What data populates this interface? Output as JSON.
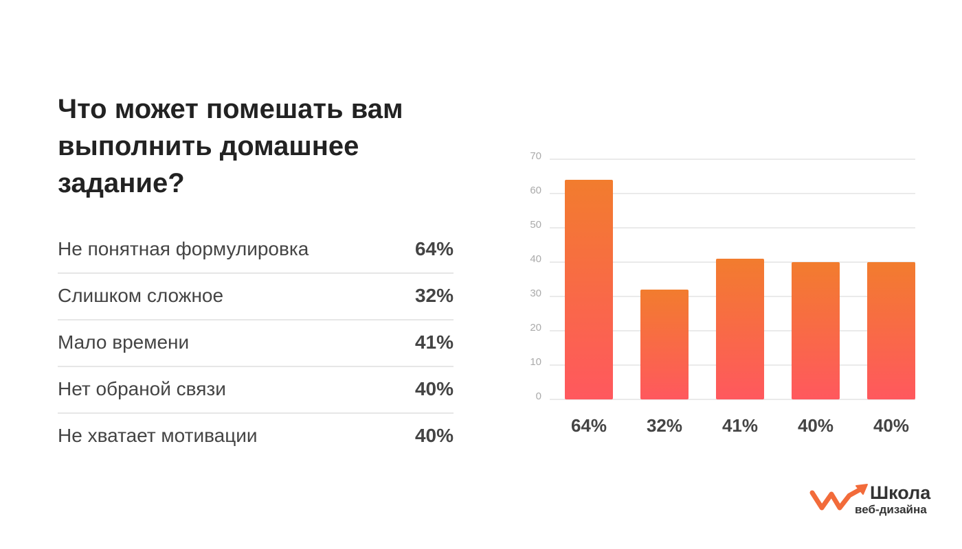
{
  "title": "Что может помешать вам выполнить домашнее задание?",
  "table": {
    "rows": [
      [
        "Не понятная формулировка",
        "64%"
      ],
      [
        "Слишком сложное",
        "32%"
      ],
      [
        "Мало времени",
        "41%"
      ],
      [
        "Нет обраной связи",
        "40%"
      ],
      [
        "Не хватает мотивации",
        "40%"
      ]
    ]
  },
  "chart_data": {
    "type": "bar",
    "values": [
      64,
      32,
      41,
      40,
      40
    ],
    "value_labels": [
      "64%",
      "32%",
      "41%",
      "40%",
      "40%"
    ],
    "gradient": [
      "#f27c2e",
      "#ff585e"
    ],
    "ylim": [
      0,
      70
    ],
    "yticks": [
      0,
      10,
      20,
      30,
      40,
      50,
      60,
      70
    ],
    "grid": true
  },
  "logo": {
    "name": "Школа",
    "subtitle": "веб-дизайна"
  }
}
